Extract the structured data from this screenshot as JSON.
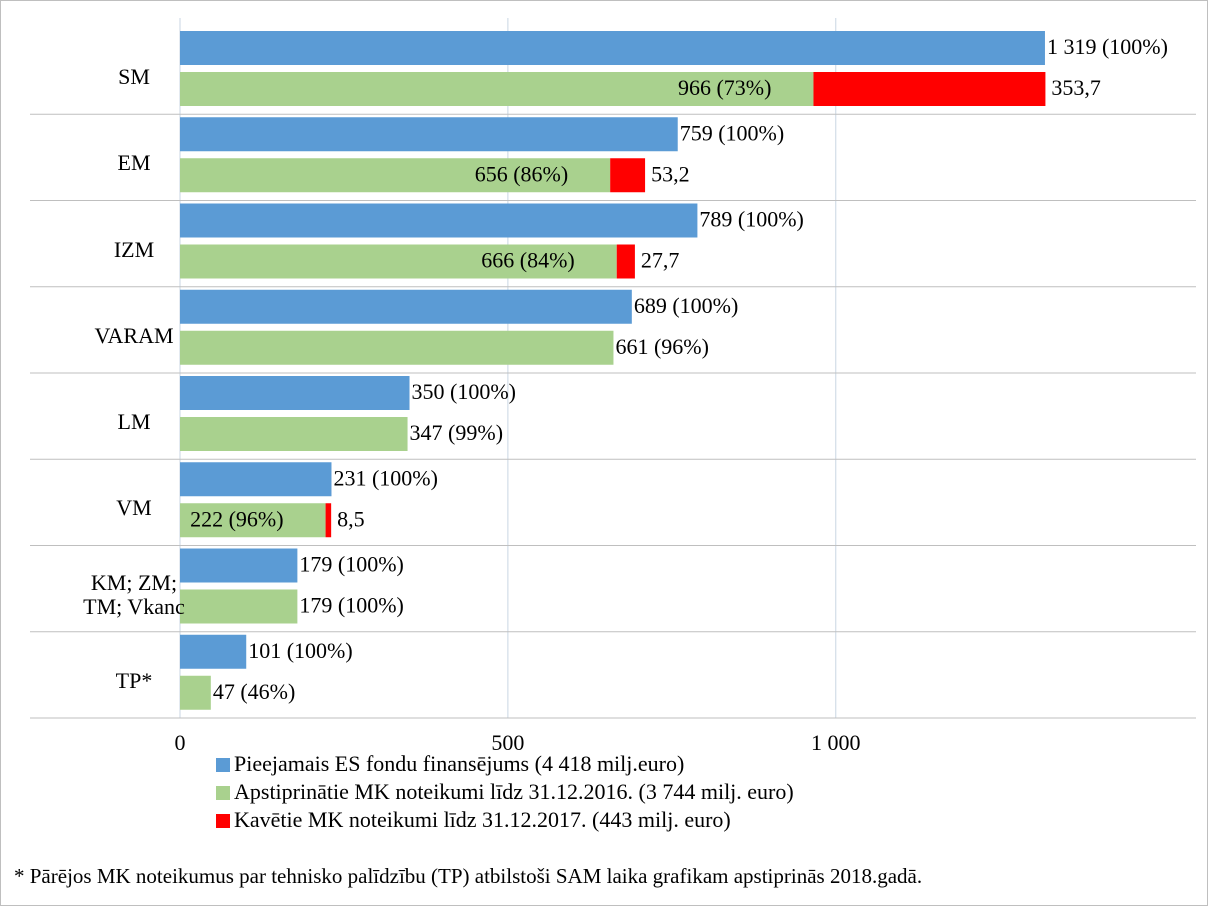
{
  "chart_data": {
    "type": "bar",
    "orientation": "horizontal",
    "categories": [
      "SM",
      "EM",
      "IZM",
      "VARAM",
      "LM",
      "VM",
      "KM; ZM; TM; Vkanc",
      "TP*"
    ],
    "series": [
      {
        "name": "Pieejamais ES fondu finansējums (4 418 milj.euro)",
        "color": "#5b9bd5",
        "values": [
          1319,
          759,
          789,
          689,
          350,
          231,
          179,
          101
        ],
        "value_labels": [
          "1 319 (100%)",
          "759 (100%)",
          "789 (100%)",
          "689 (100%)",
          "350 (100%)",
          "231 (100%)",
          "179 (100%)",
          "101 (100%)"
        ]
      },
      {
        "name": "Apstiprinātie MK noteikumi līdz 31.12.2016. (3 744 milj. euro)",
        "color": "#a9d18e",
        "values": [
          966,
          656,
          666,
          661,
          347,
          222,
          179,
          47
        ],
        "value_labels": [
          "966 (73%)",
          "656 (86%)",
          "666 (84%)",
          "661 (96%)",
          "347 (99%)",
          "222 (96%)",
          "179 (100%)",
          "47 (46%)"
        ]
      },
      {
        "name": "Kavētie MK noteikumi līdz 31.12.2017. (443 milj. euro)",
        "color": "#ff0000",
        "values": [
          353.7,
          53.2,
          27.7,
          null,
          null,
          8.5,
          null,
          null
        ],
        "value_labels": [
          "353,7",
          "53,2",
          "27,7",
          null,
          null,
          "8,5",
          null,
          null
        ]
      }
    ],
    "xlim": [
      0,
      1560
    ],
    "xticks": [
      0,
      500,
      {
        "value": 1000,
        "label": "1 000"
      }
    ],
    "grid": true,
    "footnote": "* Pārējos MK noteikumus par tehnisko palīdzību (TP) atbilstoši SAM laika grafikam apstiprinās 2018.gadā."
  }
}
